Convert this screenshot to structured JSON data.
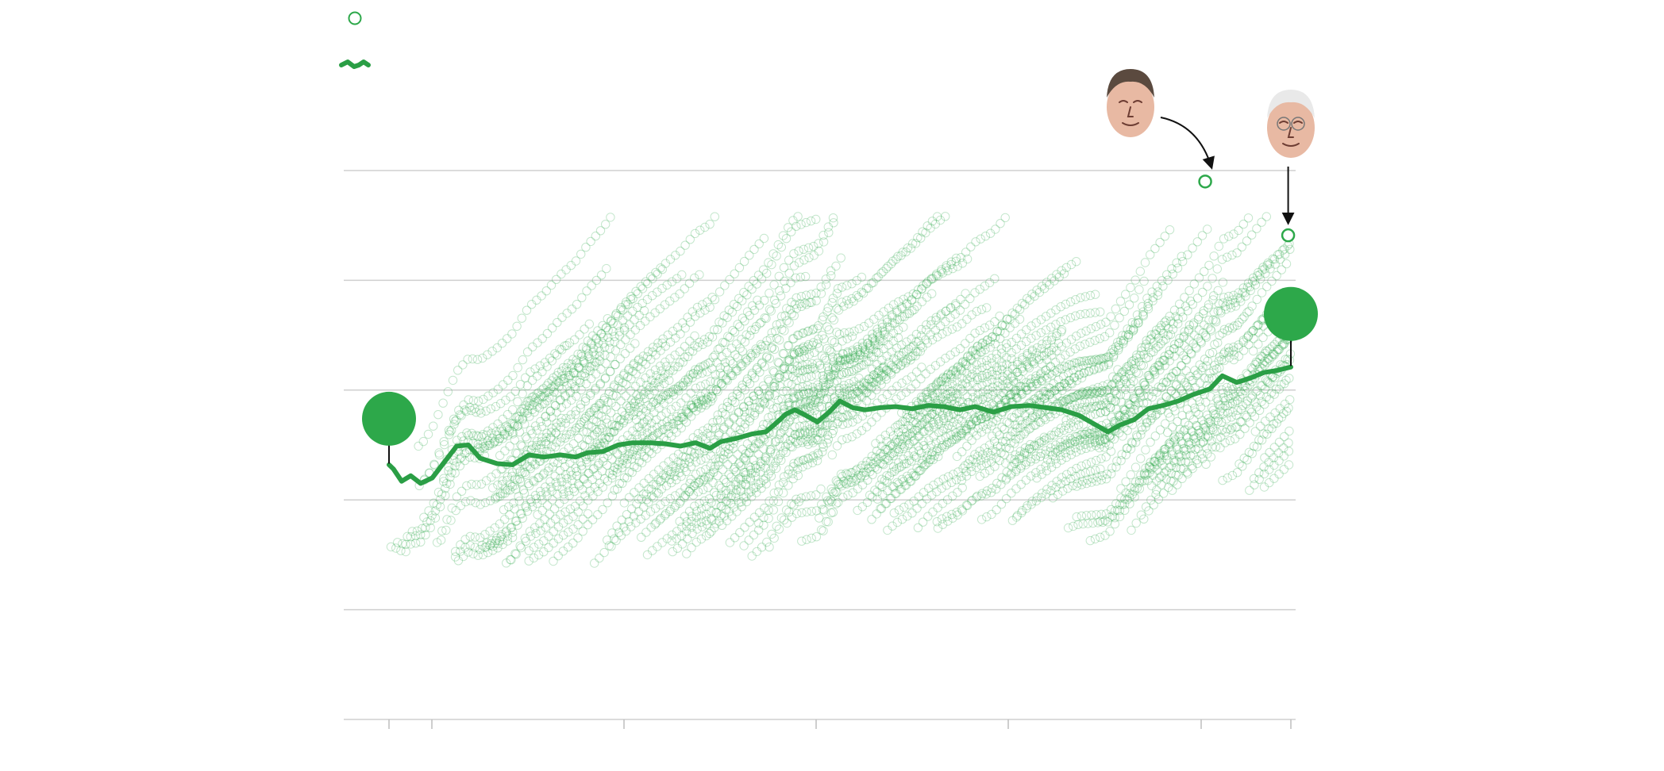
{
  "colors": {
    "accent": "#2da84a",
    "line": "#2a9e45",
    "grid": "#cfcfcf",
    "axis": "#bdbdbd",
    "arrow": "#111111"
  },
  "legend": [
    {
      "icon": "hollow-circle-icon",
      "label": ""
    },
    {
      "icon": "green-line-icon",
      "label": ""
    }
  ],
  "chart_data": {
    "type": "scatter",
    "title": "",
    "xlabel": "",
    "ylabel": "",
    "x_range": [
      0,
      1
    ],
    "y_range": [
      0,
      5
    ],
    "gridlines": [
      0,
      1,
      2,
      3,
      4,
      5
    ],
    "grid": true,
    "x_ticks": [
      "",
      "",
      "",
      "",
      "",
      "",
      ""
    ],
    "series": [
      {
        "type": "line",
        "values": [
          [
            0.0,
            2.32
          ],
          [
            0.005,
            2.28
          ],
          [
            0.014,
            2.17
          ],
          [
            0.024,
            2.22
          ],
          [
            0.035,
            2.15
          ],
          [
            0.048,
            2.2
          ],
          [
            0.06,
            2.33
          ],
          [
            0.075,
            2.49
          ],
          [
            0.088,
            2.5
          ],
          [
            0.101,
            2.38
          ],
          [
            0.12,
            2.33
          ],
          [
            0.137,
            2.32
          ],
          [
            0.155,
            2.41
          ],
          [
            0.172,
            2.39
          ],
          [
            0.19,
            2.41
          ],
          [
            0.207,
            2.39
          ],
          [
            0.22,
            2.43
          ],
          [
            0.237,
            2.44
          ],
          [
            0.254,
            2.5
          ],
          [
            0.27,
            2.52
          ],
          [
            0.29,
            2.52
          ],
          [
            0.307,
            2.51
          ],
          [
            0.323,
            2.49
          ],
          [
            0.34,
            2.52
          ],
          [
            0.356,
            2.47
          ],
          [
            0.368,
            2.53
          ],
          [
            0.385,
            2.56
          ],
          [
            0.402,
            2.6
          ],
          [
            0.418,
            2.62
          ],
          [
            0.432,
            2.72
          ],
          [
            0.44,
            2.78
          ],
          [
            0.45,
            2.82
          ],
          [
            0.462,
            2.77
          ],
          [
            0.475,
            2.71
          ],
          [
            0.488,
            2.8
          ],
          [
            0.5,
            2.9
          ],
          [
            0.514,
            2.84
          ],
          [
            0.528,
            2.82
          ],
          [
            0.545,
            2.84
          ],
          [
            0.562,
            2.85
          ],
          [
            0.58,
            2.83
          ],
          [
            0.598,
            2.86
          ],
          [
            0.615,
            2.85
          ],
          [
            0.633,
            2.82
          ],
          [
            0.65,
            2.85
          ],
          [
            0.67,
            2.8
          ],
          [
            0.69,
            2.85
          ],
          [
            0.71,
            2.86
          ],
          [
            0.728,
            2.84
          ],
          [
            0.746,
            2.82
          ],
          [
            0.765,
            2.77
          ],
          [
            0.78,
            2.7
          ],
          [
            0.797,
            2.62
          ],
          [
            0.81,
            2.68
          ],
          [
            0.826,
            2.73
          ],
          [
            0.842,
            2.83
          ],
          [
            0.858,
            2.86
          ],
          [
            0.875,
            2.9
          ],
          [
            0.892,
            2.96
          ],
          [
            0.91,
            3.01
          ],
          [
            0.924,
            3.13
          ],
          [
            0.94,
            3.07
          ],
          [
            0.955,
            3.11
          ],
          [
            0.97,
            3.16
          ],
          [
            0.985,
            3.18
          ],
          [
            1.0,
            3.21
          ]
        ]
      },
      {
        "type": "highlight",
        "values": [
          [
            0.0,
            2.32,
            "start"
          ],
          [
            1.0,
            3.21,
            "end"
          ],
          [
            0.905,
            4.9,
            "callout-left"
          ],
          [
            0.997,
            4.41,
            "callout-right"
          ]
        ]
      }
    ]
  },
  "callouts": [
    {
      "name": "callout-left",
      "icon": "portrait-icon"
    },
    {
      "name": "callout-right",
      "icon": "portrait-icon"
    }
  ]
}
